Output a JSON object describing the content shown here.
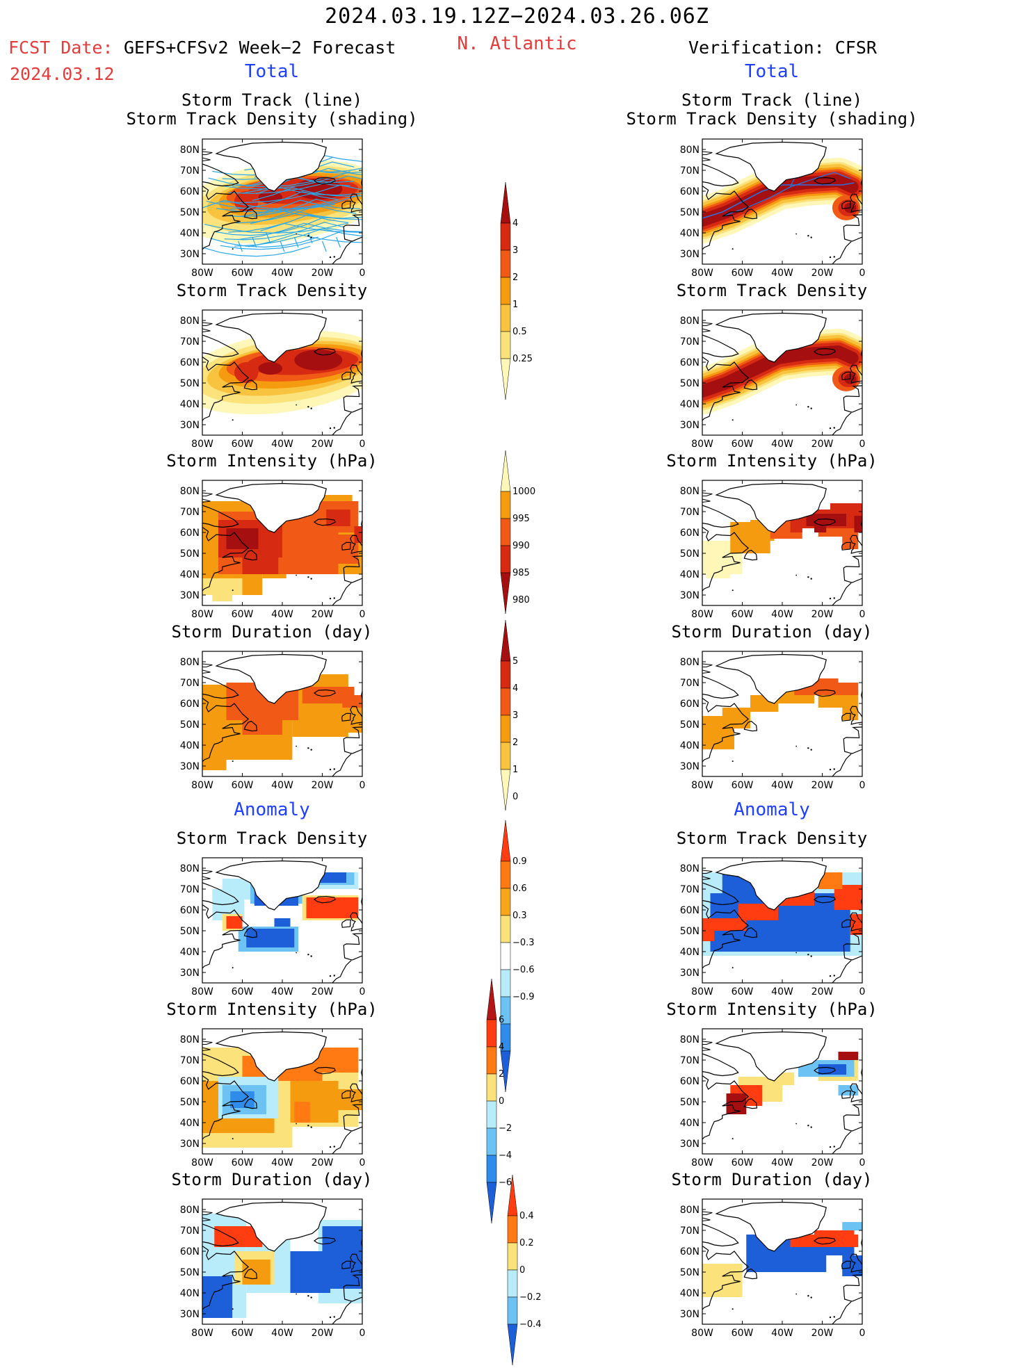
{
  "header": {
    "title": "2024.03.19.12Z−2024.03.26.06Z",
    "fcst_label": "FCST Date:",
    "fcst_model": "GEFS+CFSv2 Week−2 Forecast",
    "fcst_date": "2024.03.12",
    "region": "N. Atlantic",
    "verification": "Verification: CFSR"
  },
  "sections": {
    "total_left": "Total",
    "total_right": "Total",
    "anomaly_left": "Anomaly",
    "anomaly_right": "Anomaly"
  },
  "panel_titles": {
    "track_line": "Storm Track (line)",
    "track_shading": "Storm Track Density (shading)",
    "density": "Storm Track Density",
    "intensity": "Storm Intensity (hPa)",
    "duration": "Storm Duration (day)"
  },
  "axes": {
    "lat_ticks": [
      "80N",
      "70N",
      "60N",
      "50N",
      "40N",
      "30N"
    ],
    "lon_ticks": [
      "80W",
      "60W",
      "40W",
      "20W",
      "0"
    ]
  },
  "colorbars": [
    {
      "id": "density",
      "labels": [
        "4",
        "3",
        "2",
        "1",
        "0.5",
        "0.25"
      ],
      "colors": [
        "#a50f0f",
        "#d62a12",
        "#f05a16",
        "#f59b0f",
        "#f8c440",
        "#fbe27a",
        "#fef7b8"
      ]
    },
    {
      "id": "intensity",
      "labels": [
        "1000",
        "995",
        "990",
        "985",
        "980"
      ],
      "colors": [
        "#fef7b8",
        "#f59b0f",
        "#f05a16",
        "#d62a12",
        "#a50f0f"
      ]
    },
    {
      "id": "duration",
      "labels": [
        "5",
        "4",
        "3",
        "2",
        "1",
        "0"
      ],
      "colors": [
        "#a50f0f",
        "#d62a12",
        "#f05a16",
        "#f59b0f",
        "#f8c440",
        "#fef7b8"
      ]
    },
    {
      "id": "density-anom",
      "labels": [
        "0.9",
        "0.6",
        "0.3",
        "−0.3",
        "−0.6",
        "−0.9"
      ],
      "colors": [
        "#ff3d10",
        "#ff7a12",
        "#f7a51a",
        "#fbe27a",
        "#ffffff",
        "#b8ecfb",
        "#6cc3f3",
        "#2f8ceb",
        "#1c5fd8"
      ]
    },
    {
      "id": "intensity-anom",
      "labels": [
        "6",
        "4",
        "2",
        "0",
        "−2",
        "−4",
        "−6"
      ],
      "colors": [
        "#b51515",
        "#ff3d10",
        "#ff7a12",
        "#fbe27a",
        "#b8ecfb",
        "#6cc3f3",
        "#2f8ceb",
        "#1c5fd8"
      ]
    },
    {
      "id": "duration-anom",
      "labels": [
        "0.4",
        "0.2",
        "0",
        "−0.2",
        "−0.4"
      ],
      "colors": [
        "#ff3d10",
        "#ff7a12",
        "#fbe27a",
        "#b8ecfb",
        "#6cc3f3",
        "#1c5fd8"
      ]
    }
  ],
  "colors": {
    "red_label": "#e43b3b",
    "blue_label": "#1f3fff",
    "track_forecast": "#29a7e8",
    "track_verification": "#2f6fd8"
  }
}
